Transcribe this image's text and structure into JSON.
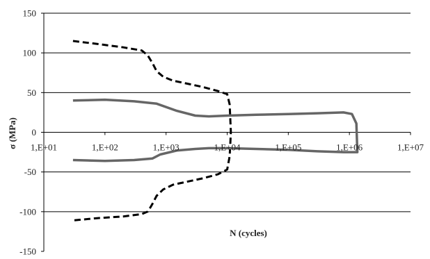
{
  "chart_data": {
    "type": "line",
    "xlabel": "N (cycles)",
    "ylabel": "σ (MPa)",
    "x_scale": "log",
    "xlim": [
      10,
      10000000
    ],
    "ylim": [
      -150,
      150
    ],
    "x_ticks": [
      10,
      100,
      1000,
      10000,
      100000,
      1000000,
      10000000
    ],
    "x_tick_labels": [
      "1,E+01",
      "1,E+02",
      "1,E+03",
      "1,E+04",
      "1,E+05",
      "1,E+06",
      "1,E+07"
    ],
    "y_ticks": [
      -150,
      -100,
      -50,
      0,
      50,
      100,
      150
    ],
    "y_tick_labels": [
      "-150",
      "-100",
      "-50",
      "0",
      "50",
      "100",
      "150"
    ],
    "grid": "horizontal",
    "legend": "none",
    "colors": {
      "dashed": "#000000",
      "solid": "#666666",
      "grid": "#000000"
    },
    "series": [
      {
        "style": "dashed",
        "points": [
          [
            30,
            115
          ],
          [
            80,
            111
          ],
          [
            200,
            107
          ],
          [
            400,
            103
          ],
          [
            500,
            97
          ],
          [
            600,
            87
          ],
          [
            700,
            77
          ],
          [
            900,
            70
          ],
          [
            1300,
            65
          ],
          [
            2000,
            62
          ],
          [
            4000,
            57
          ],
          [
            7000,
            52
          ],
          [
            10000,
            48
          ],
          [
            11000,
            35
          ],
          [
            11500,
            0
          ],
          [
            11000,
            -30
          ],
          [
            10000,
            -47
          ],
          [
            7000,
            -53
          ],
          [
            4000,
            -58
          ],
          [
            2000,
            -63
          ],
          [
            1300,
            -66
          ],
          [
            900,
            -72
          ],
          [
            700,
            -80
          ],
          [
            600,
            -90
          ],
          [
            550,
            -95
          ],
          [
            500,
            -100
          ],
          [
            400,
            -103
          ],
          [
            200,
            -106
          ],
          [
            80,
            -108
          ],
          [
            30,
            -111
          ]
        ]
      },
      {
        "style": "solid",
        "points": [
          [
            30,
            40
          ],
          [
            100,
            41
          ],
          [
            300,
            39
          ],
          [
            700,
            36
          ],
          [
            1500,
            27
          ],
          [
            3000,
            21
          ],
          [
            5000,
            20
          ],
          [
            10000,
            21
          ],
          [
            30000,
            22
          ],
          [
            100000,
            23
          ],
          [
            300000,
            24
          ],
          [
            800000,
            25
          ],
          [
            1100000,
            23
          ],
          [
            1300000,
            11
          ],
          [
            1350000,
            -25
          ],
          [
            1200000,
            -25
          ],
          [
            800000,
            -25
          ],
          [
            300000,
            -24
          ],
          [
            100000,
            -22
          ],
          [
            30000,
            -21
          ],
          [
            10000,
            -20
          ],
          [
            5000,
            -20
          ],
          [
            3000,
            -21
          ],
          [
            1500,
            -23
          ],
          [
            800,
            -28
          ],
          [
            600,
            -33
          ],
          [
            300,
            -35
          ],
          [
            100,
            -36
          ],
          [
            30,
            -35
          ]
        ]
      }
    ]
  }
}
